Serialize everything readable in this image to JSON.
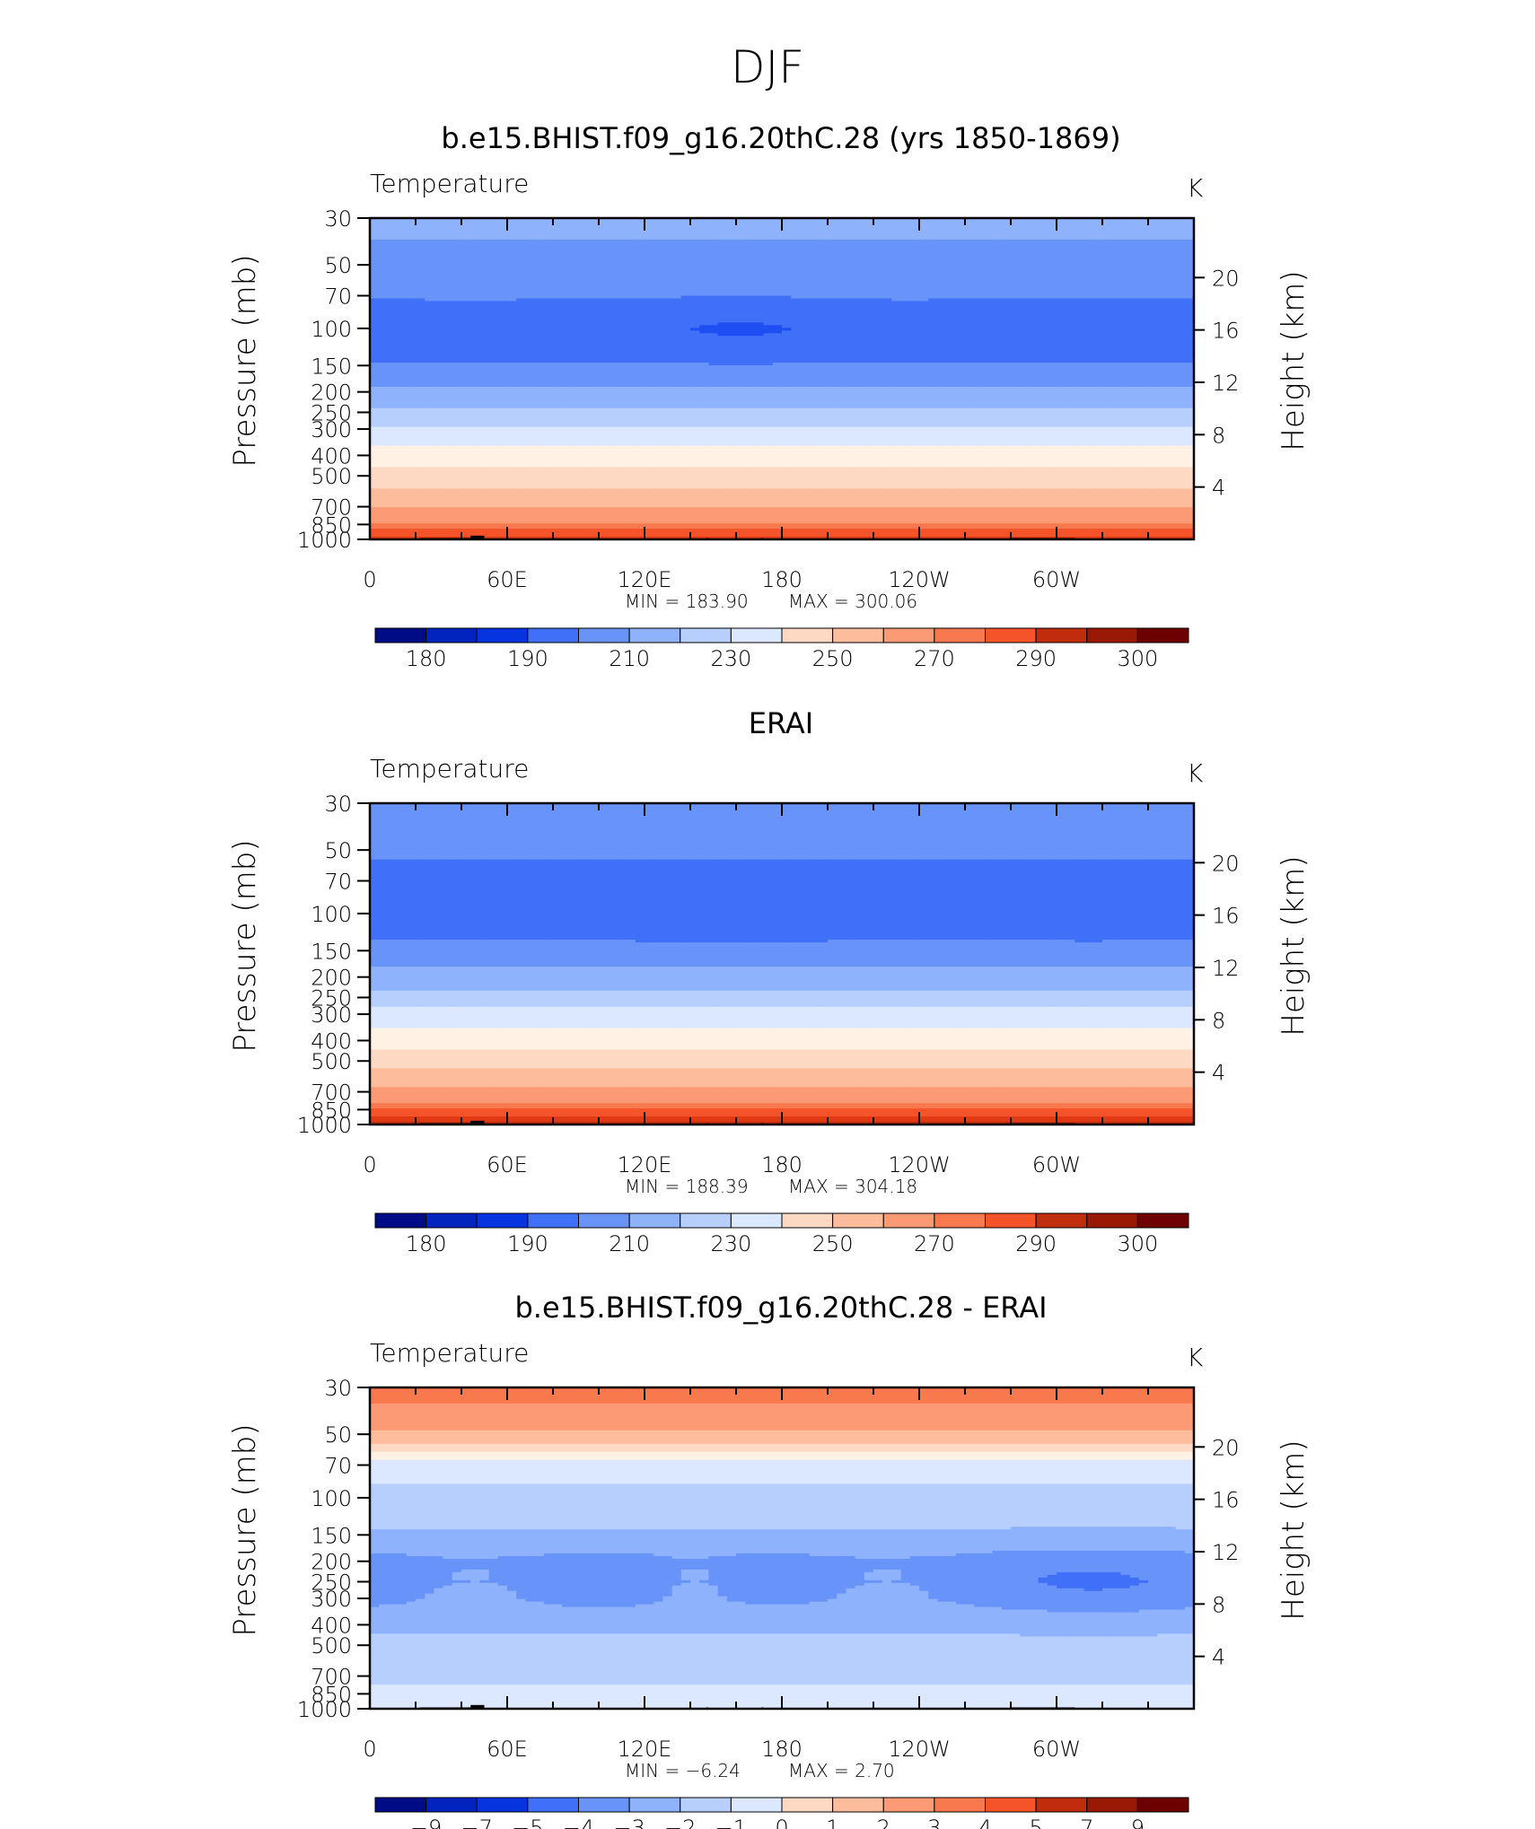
{
  "page_title": "DJF",
  "colors": {
    "cmap": [
      "#000b86",
      "#0024bd",
      "#0634df",
      "#1f4ef3",
      "#4070f8",
      "#6894fa",
      "#8fb2fc",
      "#b7cffd",
      "#dce8ff",
      "#fff1e4",
      "#fdd9c3",
      "#fdbc9c",
      "#fb9a74",
      "#f9794f",
      "#f5532a",
      "#df3a14",
      "#c02d0c",
      "#9a1904",
      "#6d0000"
    ],
    "frame": "#000000"
  },
  "chart_data": [
    {
      "type": "heatmap",
      "title": "b.e15.BHIST.f09_g16.20thC.28 (yrs 1850-1869)",
      "variable": "Temperature",
      "units": "K",
      "ylabel": "Pressure (mb)",
      "ylabel_right": "Height (km)",
      "xticks": [
        "0",
        "60E",
        "120E",
        "180",
        "120W",
        "60W"
      ],
      "yticks": [
        "30",
        "50",
        "70",
        "100",
        "150",
        "200",
        "250",
        "300",
        "400",
        "500",
        "700",
        "850",
        "1000"
      ],
      "yticks_right": [
        "20",
        "16",
        "12",
        "8",
        "4"
      ],
      "stats": {
        "min_label": "MIN",
        "min": "183.90",
        "max_label": "MAX",
        "max": "300.06"
      },
      "colorbar_labels": [
        "180",
        "190",
        "210",
        "230",
        "250",
        "270",
        "290",
        "300"
      ],
      "levels": [
        175,
        180,
        185,
        190,
        200,
        210,
        220,
        230,
        240,
        250,
        260,
        270,
        280,
        285,
        290,
        295,
        300,
        305
      ],
      "profile": {
        "p": [
          30,
          40,
          50,
          70,
          85,
          100,
          120,
          150,
          200,
          250,
          300,
          400,
          500,
          600,
          700,
          800,
          850,
          925,
          1000
        ],
        "v": [
          214,
          209,
          206,
          201,
          196,
          193,
          195,
          201,
          212,
          222,
          232,
          244,
          254,
          262,
          270,
          277,
          281,
          288,
          292
        ]
      },
      "lon_mod": {
        "p": 100,
        "amp": -4,
        "center": 165,
        "width": 35
      }
    },
    {
      "type": "heatmap",
      "title": "ERAI",
      "variable": "Temperature",
      "units": "K",
      "ylabel": "Pressure (mb)",
      "ylabel_right": "Height (km)",
      "xticks": [
        "0",
        "60E",
        "120E",
        "180",
        "120W",
        "60W"
      ],
      "yticks": [
        "30",
        "50",
        "70",
        "100",
        "150",
        "200",
        "250",
        "300",
        "400",
        "500",
        "700",
        "850",
        "1000"
      ],
      "yticks_right": [
        "20",
        "16",
        "12",
        "8",
        "4"
      ],
      "stats": {
        "min_label": "MIN",
        "min": "188.39",
        "max_label": "MAX",
        "max": "304.18"
      },
      "colorbar_labels": [
        "180",
        "190",
        "210",
        "230",
        "250",
        "270",
        "290",
        "300"
      ],
      "levels": [
        175,
        180,
        185,
        190,
        200,
        210,
        220,
        230,
        240,
        250,
        260,
        270,
        280,
        285,
        290,
        295,
        300,
        305
      ],
      "profile": {
        "p": [
          30,
          40,
          50,
          70,
          85,
          100,
          120,
          150,
          200,
          250,
          300,
          400,
          500,
          600,
          700,
          800,
          850,
          925,
          1000
        ],
        "v": [
          208,
          204,
          201,
          198,
          196,
          195,
          197,
          203,
          214,
          224,
          234,
          246,
          256,
          264,
          272,
          280,
          285,
          292,
          298
        ]
      },
      "lon_mod": {
        "p": 100,
        "amp": -3,
        "center": 170,
        "width": 30
      }
    },
    {
      "type": "heatmap",
      "title": "b.e15.BHIST.f09_g16.20thC.28 - ERAI",
      "variable": "Temperature",
      "units": "K",
      "ylabel": "Pressure (mb)",
      "ylabel_right": "Height (km)",
      "xticks": [
        "0",
        "60E",
        "120E",
        "180",
        "120W",
        "60W"
      ],
      "yticks": [
        "30",
        "50",
        "70",
        "100",
        "150",
        "200",
        "250",
        "300",
        "400",
        "500",
        "700",
        "850",
        "1000"
      ],
      "yticks_right": [
        "20",
        "16",
        "12",
        "8",
        "4"
      ],
      "stats": {
        "min_label": "MIN",
        "min": "−6.24",
        "max_label": "MAX",
        "max": "2.70"
      },
      "colorbar_labels": [
        "−9",
        "−7",
        "−5",
        "−4",
        "−3",
        "−2",
        "−1",
        "0",
        "1",
        "2",
        "3",
        "4",
        "5",
        "7",
        "9"
      ],
      "levels": [
        -10,
        -9,
        -8,
        -7,
        -6,
        -5,
        -4,
        -3,
        -2,
        -1,
        0,
        1,
        2,
        3,
        4,
        5,
        6,
        7,
        8
      ],
      "profile": {
        "p": [
          30,
          40,
          50,
          60,
          70,
          85,
          100,
          120,
          150,
          200,
          250,
          300,
          400,
          500,
          600,
          700,
          850,
          925,
          1000
        ],
        "v": [
          2.3,
          1.8,
          0.8,
          -0.8,
          -2.6,
          -3.0,
          -3.2,
          -3.6,
          -4.2,
          -5.4,
          -5.6,
          -5.3,
          -4.4,
          -3.6,
          -3.1,
          -3.2,
          -2.8,
          -2.4,
          -2.2
        ]
      },
      "lon_mod": {
        "p": 250,
        "amp": 1.2,
        "center": 140,
        "width": 28
      }
    }
  ]
}
